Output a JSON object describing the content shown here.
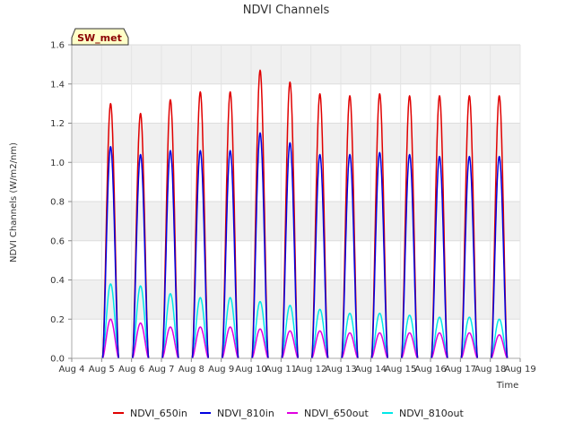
{
  "chart_data": {
    "type": "line",
    "title": "NDVI Channels",
    "xlabel": "Time",
    "ylabel": "NDVI Channels (W/m2/nm)",
    "badge": "SW_met",
    "xlim": [
      4,
      19
    ],
    "ylim": [
      0.0,
      1.6
    ],
    "x_ticks": [
      4,
      5,
      6,
      7,
      8,
      9,
      10,
      11,
      12,
      13,
      14,
      15,
      16,
      17,
      18,
      19
    ],
    "x_tick_labels": [
      "Aug 4",
      "Aug 5",
      "Aug 6",
      "Aug 7",
      "Aug 8",
      "Aug 9",
      "Aug 10",
      "Aug 11",
      "Aug 12",
      "Aug 13",
      "Aug 14",
      "Aug 15",
      "Aug 16",
      "Aug 17",
      "Aug 18",
      "Aug 19"
    ],
    "y_ticks": [
      0.0,
      0.2,
      0.4,
      0.6,
      0.8,
      1.0,
      1.2,
      1.4,
      1.6
    ],
    "y_tick_labels": [
      "0.0",
      "0.2",
      "0.4",
      "0.6",
      "0.8",
      "1.0",
      "1.2",
      "1.4",
      "1.6"
    ],
    "grid": true,
    "legend_position": "bottom",
    "diurnal": {
      "day_centers": [
        5.3,
        6.3,
        7.3,
        8.3,
        9.3,
        10.3,
        11.3,
        12.3,
        13.3,
        14.3,
        15.3,
        16.3,
        17.3,
        18.3
      ],
      "half_width_days": 0.27
    },
    "series": [
      {
        "name": "NDVI_650in",
        "color": "#e00000",
        "daily_peaks": [
          1.3,
          1.25,
          1.32,
          1.36,
          1.36,
          1.47,
          1.41,
          1.35,
          1.34,
          1.35,
          1.34,
          1.34,
          1.34,
          1.34
        ]
      },
      {
        "name": "NDVI_810in",
        "color": "#0000e0",
        "daily_peaks": [
          1.08,
          1.04,
          1.06,
          1.06,
          1.06,
          1.15,
          1.1,
          1.04,
          1.04,
          1.05,
          1.04,
          1.03,
          1.03,
          1.03
        ]
      },
      {
        "name": "NDVI_650out",
        "color": "#e000e0",
        "daily_peaks": [
          0.2,
          0.18,
          0.16,
          0.16,
          0.16,
          0.15,
          0.14,
          0.14,
          0.13,
          0.13,
          0.13,
          0.13,
          0.13,
          0.12
        ]
      },
      {
        "name": "NDVI_810out",
        "color": "#00e8e8",
        "daily_peaks": [
          0.38,
          0.37,
          0.33,
          0.31,
          0.31,
          0.29,
          0.27,
          0.25,
          0.23,
          0.23,
          0.22,
          0.21,
          0.21,
          0.2
        ]
      }
    ]
  }
}
